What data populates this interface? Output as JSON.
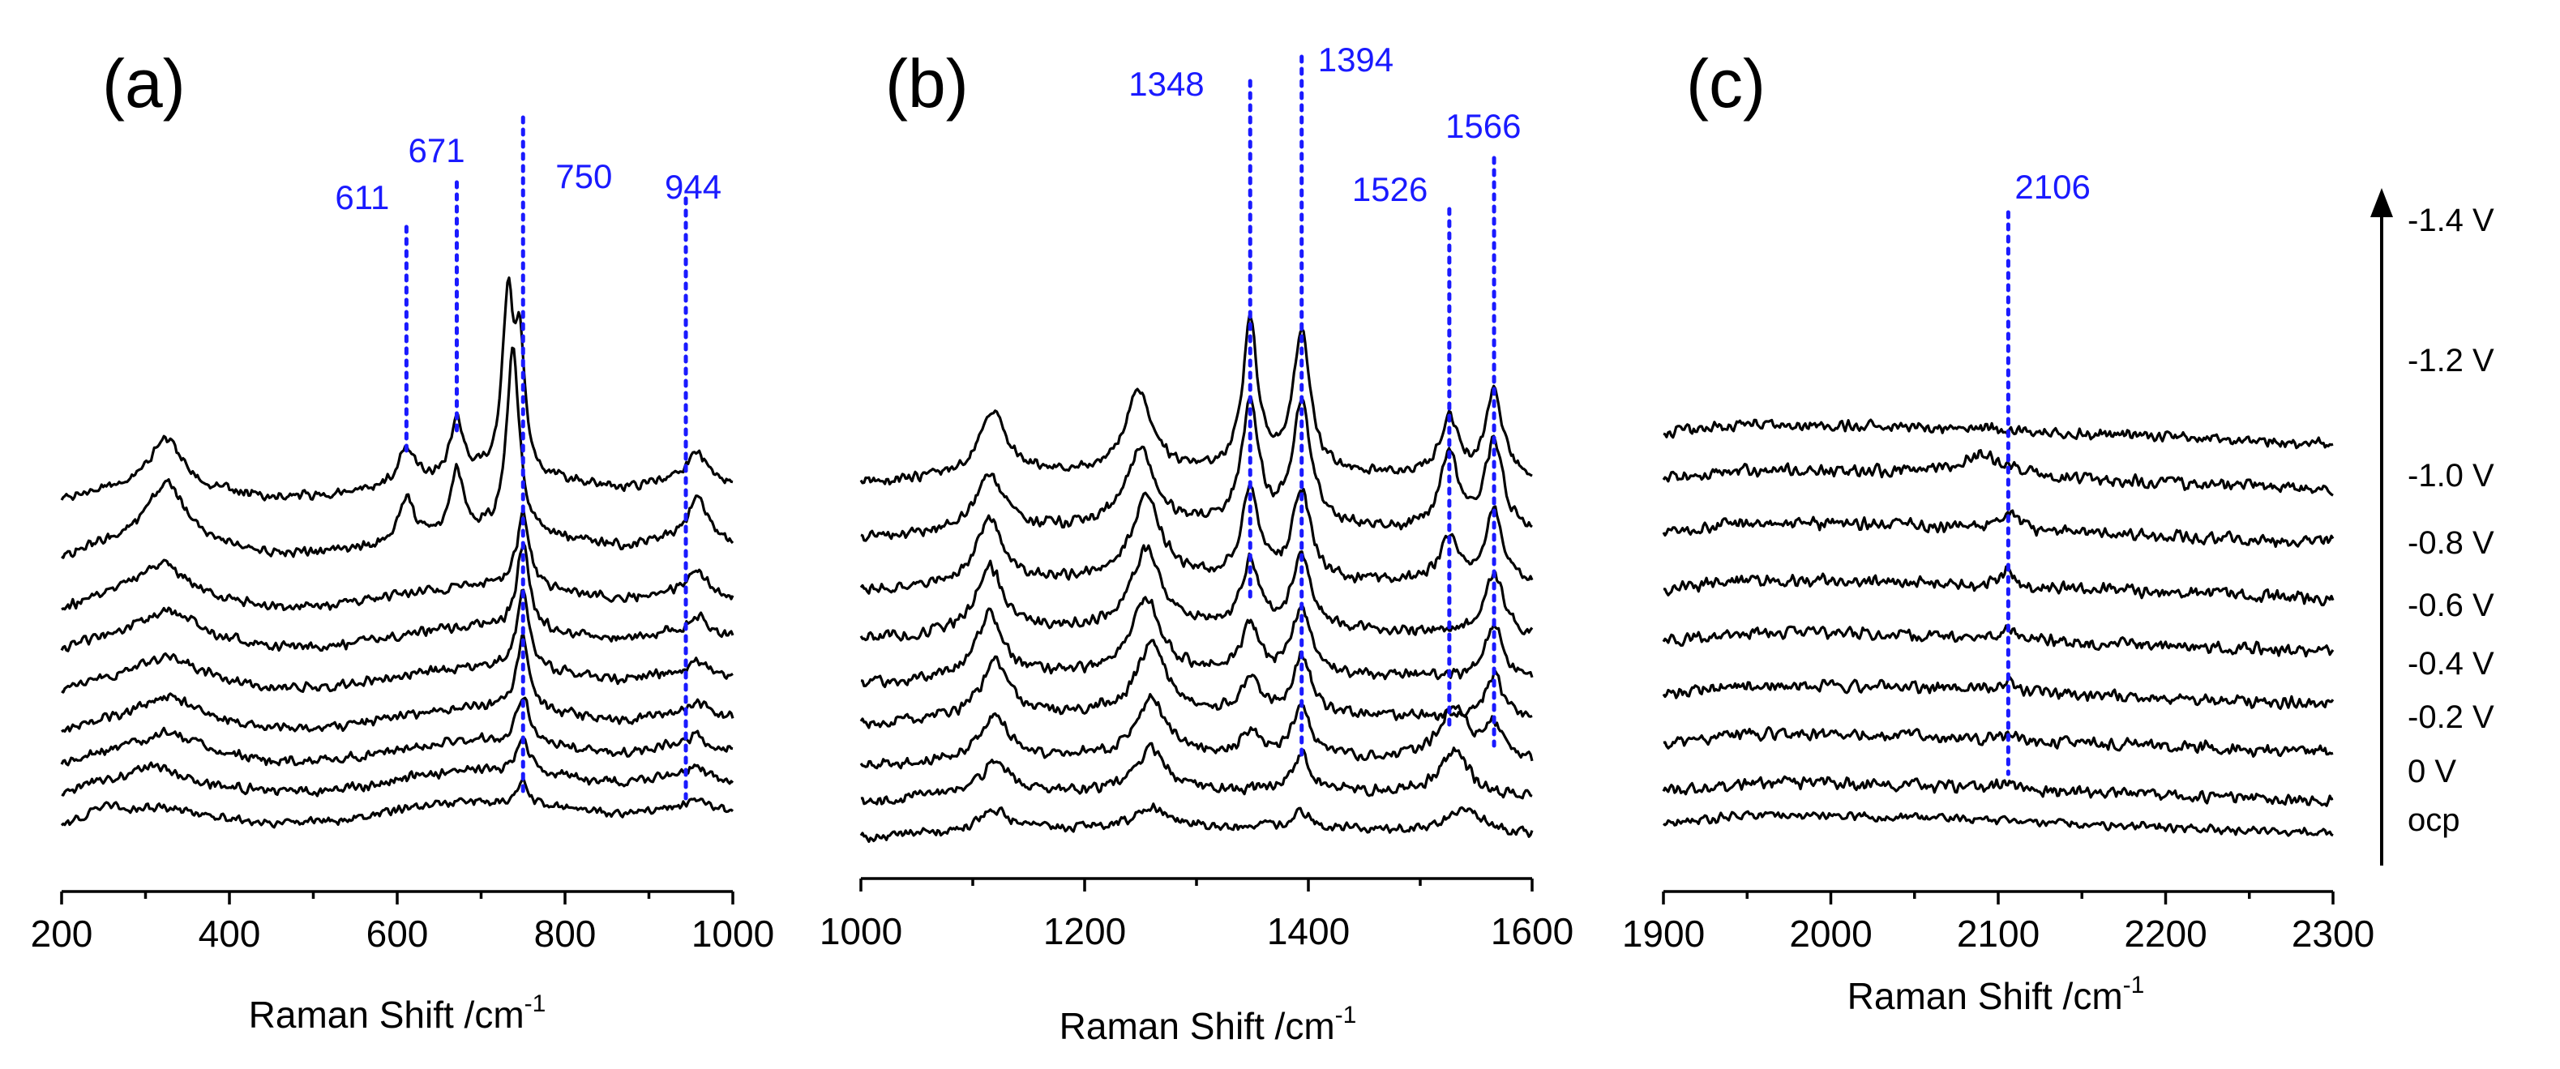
{
  "colors": {
    "trace": "#000000",
    "annotation": "#1a1aff",
    "axis": "#000000"
  },
  "voltage_labels": [
    "-1.4 V",
    "-1.2 V",
    "-1.0 V",
    "-0.8 V",
    "-0.6 V",
    "-0.4 V",
    "-0.2 V",
    "0 V",
    "ocp"
  ],
  "voltage_arrow": "increasing negative potential (arrow up)",
  "chart_data": [
    {
      "type": "line",
      "panel_label": "(a)",
      "xlabel": "Raman Shift /cm",
      "xlabel_sup": "-1",
      "xlim": [
        200,
        1000
      ],
      "xticks": [
        200,
        400,
        600,
        800,
        1000
      ],
      "tick_labels": [
        "200",
        "400",
        "600",
        "800",
        "1000"
      ],
      "peak_labels": [
        "611",
        "671",
        "750",
        "944"
      ],
      "peaks": [
        {
          "x": 611,
          "label": "611"
        },
        {
          "x": 671,
          "label": "671"
        },
        {
          "x": 750,
          "label": "750"
        },
        {
          "x": 944,
          "label": "944"
        }
      ],
      "background": [
        [
          200,
          0.4
        ],
        [
          240,
          0.8
        ],
        [
          280,
          1.0
        ],
        [
          320,
          1.2
        ],
        [
          380,
          0.8
        ],
        [
          450,
          0.5
        ],
        [
          520,
          0.6
        ],
        [
          560,
          0.8
        ],
        [
          620,
          1.2
        ],
        [
          700,
          1.5
        ],
        [
          800,
          1.2
        ],
        [
          870,
          0.9
        ],
        [
          920,
          1.2
        ],
        [
          1000,
          1.0
        ]
      ],
      "series": [
        {
          "name": "ocp",
          "noise": 6,
          "bands": [
            [
              255,
              20,
              12
            ],
            [
              750,
              8,
              28
            ],
            [
              960,
              14,
              12
            ]
          ]
        },
        {
          "name": "0 V",
          "noise": 7,
          "bands": [
            [
              300,
              35,
              14
            ],
            [
              750,
              9,
              45
            ],
            [
              958,
              14,
              14
            ]
          ]
        },
        {
          "name": "-0.2 V",
          "noise": 7,
          "bands": [
            [
              330,
              45,
              18
            ],
            [
              750,
              9,
              60
            ],
            [
              958,
              14,
              16
            ]
          ]
        },
        {
          "name": "-0.4 V",
          "noise": 7,
          "bands": [
            [
              330,
              45,
              22
            ],
            [
              750,
              9,
              90
            ],
            [
              958,
              14,
              18
            ]
          ]
        },
        {
          "name": "-0.6 V",
          "noise": 7,
          "bands": [
            [
              330,
              45,
              22
            ],
            [
              750,
              9,
              100
            ],
            [
              958,
              14,
              20
            ]
          ]
        },
        {
          "name": "-0.8 V",
          "noise": 7,
          "bands": [
            [
              330,
              45,
              28
            ],
            [
              750,
              9,
              105
            ],
            [
              958,
              14,
              24
            ]
          ]
        },
        {
          "name": "-1.0 V",
          "noise": 7,
          "bands": [
            [
              320,
              40,
              35
            ],
            [
              750,
              9,
              95
            ],
            [
              958,
              14,
              30
            ]
          ]
        },
        {
          "name": "-1.2 V",
          "noise": 7,
          "bands": [
            [
              325,
              30,
              70
            ],
            [
              611,
              10,
              55
            ],
            [
              671,
              9,
              80
            ],
            [
              738,
              9,
              230
            ],
            [
              958,
              14,
              55
            ]
          ]
        },
        {
          "name": "-1.4 V",
          "noise": 7,
          "bands": [
            [
              325,
              22,
              55
            ],
            [
              611,
              10,
              45
            ],
            [
              671,
              9,
              70
            ],
            [
              732,
              8,
              210
            ],
            [
              746,
              7,
              150
            ],
            [
              958,
              14,
              40
            ]
          ]
        }
      ]
    },
    {
      "type": "line",
      "panel_label": "(b)",
      "xlabel": "Raman Shift /cm",
      "xlabel_sup": "-1",
      "xlim": [
        1000,
        1600
      ],
      "xticks": [
        1000,
        1200,
        1400,
        1600
      ],
      "tick_labels": [
        "1000",
        "1200",
        "1400",
        "1600"
      ],
      "peak_labels": [
        "1348",
        "1394",
        "1526",
        "1566"
      ],
      "peaks": [
        {
          "x": 1348,
          "label": "1348"
        },
        {
          "x": 1394,
          "label": "1394"
        },
        {
          "x": 1526,
          "label": "1526"
        },
        {
          "x": 1566,
          "label": "1566"
        }
      ],
      "background": [
        [
          1000,
          0.6
        ],
        [
          1100,
          1.0
        ],
        [
          1250,
          1.2
        ],
        [
          1400,
          1.1
        ],
        [
          1500,
          1.0
        ],
        [
          1600,
          0.8
        ]
      ],
      "series": [
        {
          "name": "ocp",
          "noise": 7,
          "bands": [
            [
              1120,
              14,
              25
            ],
            [
              1260,
              16,
              25
            ],
            [
              1394,
              10,
              20
            ],
            [
              1540,
              18,
              30
            ]
          ]
        },
        {
          "name": "0 V",
          "noise": 8,
          "bands": [
            [
              1120,
              14,
              40
            ],
            [
              1260,
              16,
              50
            ],
            [
              1394,
              10,
              45
            ],
            [
              1530,
              16,
              55
            ]
          ]
        },
        {
          "name": "-0.2 V",
          "noise": 8,
          "bands": [
            [
              1120,
              14,
              55
            ],
            [
              1260,
              16,
              70
            ],
            [
              1348,
              9,
              30
            ],
            [
              1394,
              10,
              60
            ],
            [
              1530,
              16,
              65
            ],
            [
              1566,
              10,
              40
            ]
          ]
        },
        {
          "name": "-0.4 V",
          "noise": 8,
          "bands": [
            [
              1120,
              14,
              70
            ],
            [
              1260,
              16,
              85
            ],
            [
              1348,
              9,
              45
            ],
            [
              1394,
              10,
              70
            ],
            [
              1566,
              10,
              55
            ]
          ]
        },
        {
          "name": "-0.6 V",
          "noise": 8,
          "bands": [
            [
              1115,
              14,
              75
            ],
            [
              1255,
              16,
              90
            ],
            [
              1348,
              9,
              60
            ],
            [
              1394,
              10,
              80
            ],
            [
              1566,
              10,
              65
            ]
          ]
        },
        {
          "name": "-0.8 V",
          "noise": 8,
          "bands": [
            [
              1115,
              14,
              80
            ],
            [
              1255,
              16,
              95
            ],
            [
              1348,
              9,
              80
            ],
            [
              1394,
              10,
              90
            ],
            [
              1566,
              10,
              75
            ]
          ]
        },
        {
          "name": "-1.0 V",
          "noise": 8,
          "bands": [
            [
              1115,
              14,
              80
            ],
            [
              1255,
              16,
              100
            ],
            [
              1348,
              9,
              110
            ],
            [
              1394,
              10,
              110
            ],
            [
              1526,
              10,
              55
            ],
            [
              1566,
              10,
              90
            ]
          ]
        },
        {
          "name": "-1.2 V",
          "noise": 8,
          "bands": [
            [
              1115,
              14,
              70
            ],
            [
              1250,
              16,
              95
            ],
            [
              1348,
              9,
              150
            ],
            [
              1394,
              10,
              150
            ],
            [
              1526,
              10,
              90
            ],
            [
              1566,
              10,
              110
            ]
          ]
        },
        {
          "name": "-1.4 V",
          "noise": 7,
          "bands": [
            [
              1118,
              14,
              80
            ],
            [
              1248,
              14,
              100
            ],
            [
              1348,
              8,
              185
            ],
            [
              1394,
              9,
              175
            ],
            [
              1526,
              10,
              70
            ],
            [
              1566,
              9,
              105
            ]
          ]
        }
      ]
    },
    {
      "type": "line",
      "panel_label": "(c)",
      "xlabel": "Raman Shift /cm",
      "xlabel_sup": "-1",
      "xlim": [
        1900,
        2300
      ],
      "xticks": [
        1900,
        2000,
        2100,
        2200,
        2300
      ],
      "tick_labels": [
        "1900",
        "2000",
        "2100",
        "2200",
        "2300"
      ],
      "peak_labels": [
        "2106"
      ],
      "peaks": [
        {
          "x": 2106,
          "label": "2106"
        }
      ],
      "background": [
        [
          1900,
          0.6
        ],
        [
          1950,
          1.0
        ],
        [
          2050,
          0.9
        ],
        [
          2150,
          0.6
        ],
        [
          2300,
          0.2
        ]
      ],
      "series": [
        {
          "name": "ocp",
          "noise": 6,
          "bands": []
        },
        {
          "name": "0 V",
          "noise": 9,
          "bands": [
            [
              2106,
              4,
              12
            ]
          ]
        },
        {
          "name": "-0.2 V",
          "noise": 9,
          "bands": [
            [
              2106,
              4,
              10
            ]
          ]
        },
        {
          "name": "-0.4 V",
          "noise": 9,
          "bands": [
            [
              2106,
              4,
              14
            ]
          ]
        },
        {
          "name": "-0.6 V",
          "noise": 9,
          "bands": [
            [
              2106,
              4,
              16
            ]
          ]
        },
        {
          "name": "-0.8 V",
          "noise": 9,
          "bands": [
            [
              2106,
              4,
              18
            ]
          ]
        },
        {
          "name": "-1.0 V",
          "noise": 9,
          "bands": [
            [
              2106,
              5,
              25
            ]
          ]
        },
        {
          "name": "-1.2 V",
          "noise": 9,
          "bands": [
            [
              2090,
              18,
              25
            ]
          ]
        },
        {
          "name": "-1.4 V",
          "noise": 8,
          "bands": []
        }
      ]
    }
  ]
}
